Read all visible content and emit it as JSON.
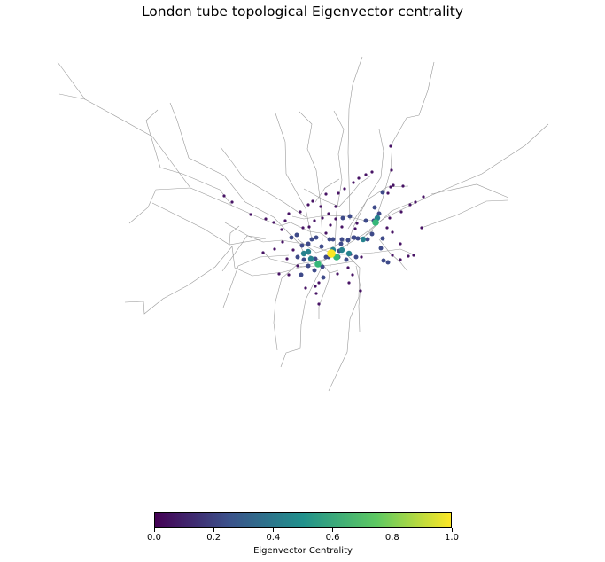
{
  "figure": {
    "title": "London tube topological Eigenvector centrality"
  },
  "colorbar": {
    "label": "Eigenvector Centrality",
    "ticks": [
      "0.0",
      "0.2",
      "0.4",
      "0.6",
      "0.8",
      "1.0"
    ],
    "tick_values": [
      0.0,
      0.2,
      0.4,
      0.6,
      0.8,
      1.0
    ],
    "colormap": "viridis",
    "colors": [
      "#440154",
      "#3b528b",
      "#21918c",
      "#5ec962",
      "#fde725"
    ]
  },
  "chart_data": {
    "type": "network",
    "title": "London tube topological Eigenvector centrality",
    "edge_color": "#9a9a9a",
    "value_range": [
      0,
      1
    ],
    "colorbar_label": "Eigenvector Centrality"
  }
}
